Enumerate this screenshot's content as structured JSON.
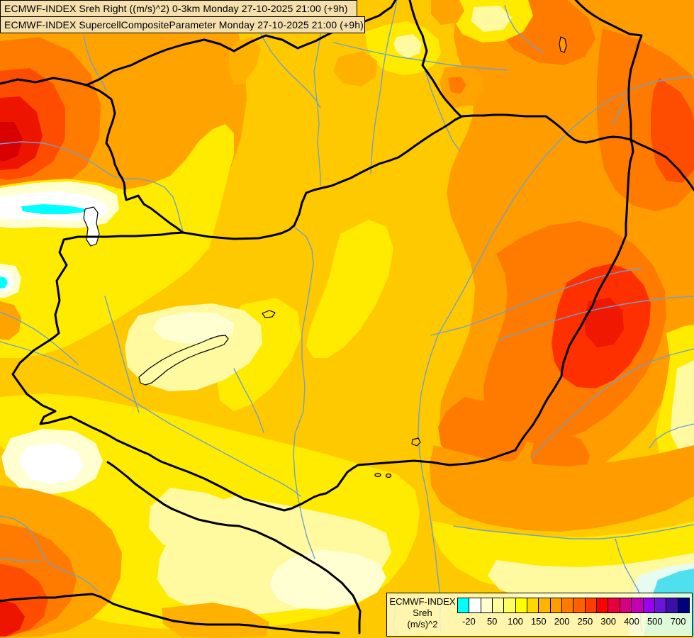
{
  "title_box": {
    "line1": "ECMWF-INDEX Sreh Right ((m/s)^2) 0-3km Monday 27-10-2025 21:00 (+9h)",
    "line2": "ECMWF-INDEX SupercellCompositeParameter Monday 27-10-2025 21:00 (+9h)"
  },
  "legend": {
    "header": "ECMWF-INDEX",
    "param": "Sreh",
    "unit": "(m/s)^2",
    "swatches": [
      "#00FFFF",
      "#FFFFFF",
      "#FFFFD2",
      "#FFFFA0",
      "#FFFF5E",
      "#FFFF00",
      "#FFD800",
      "#FFB400",
      "#FF9C00",
      "#FF7B00",
      "#FF6000",
      "#FF3C00",
      "#FF0000",
      "#E8003C",
      "#D4007F",
      "#C400B4",
      "#9C00F0",
      "#6C14D8",
      "#3A10A8",
      "#000080"
    ],
    "ticks": [
      {
        "label": "-20",
        "after": 1
      },
      {
        "label": "50",
        "after": 3
      },
      {
        "label": "100",
        "after": 5
      },
      {
        "label": "150",
        "after": 7
      },
      {
        "label": "200",
        "after": 9
      },
      {
        "label": "250",
        "after": 11
      },
      {
        "label": "300",
        "after": 13
      },
      {
        "label": "400",
        "after": 15
      },
      {
        "label": "500",
        "after": 17
      },
      {
        "label": "700",
        "after": 19
      }
    ]
  },
  "map_palette": {
    "base_gold": "#FFC900",
    "yellow": "#FFEB00",
    "pale_yellow": "#FFF9A0",
    "cream": "#FFFFD2",
    "white": "#FFFFFF",
    "cyan": "#00FFFF",
    "soft_cyan": "#4FE0F0",
    "amber": "#FFB100",
    "orange": "#FFA300",
    "deep_orange": "#FF7B00",
    "red_orange": "#FF4D00",
    "red": "#EE1500",
    "east_red": "#FF3000",
    "dark_red": "#D80000",
    "river_blue": "#6FA0CE",
    "border_black": "#000000",
    "title_bg": "#F5DFAD"
  }
}
